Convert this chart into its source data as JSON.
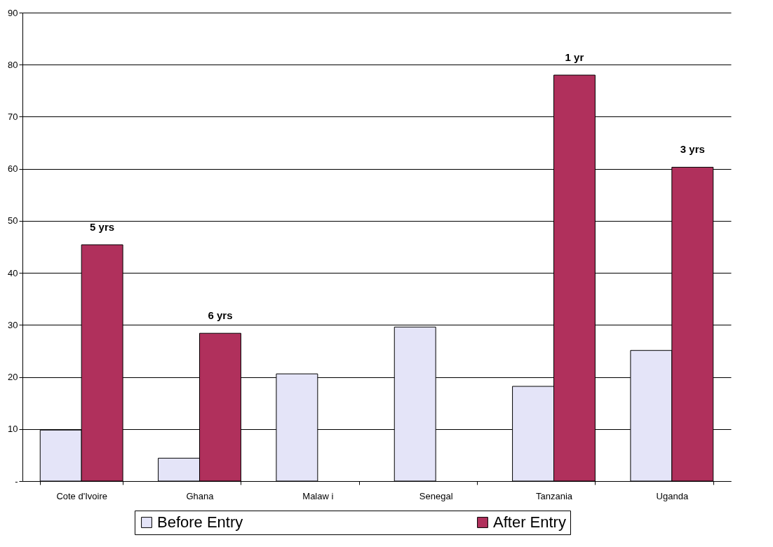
{
  "chart_data": {
    "type": "bar",
    "categories": [
      "Cote d'Ivoire",
      "Ghana",
      "Malaw i",
      "Senegal",
      "Tanzania",
      "Uganda"
    ],
    "series": [
      {
        "name": "Before Entry",
        "color": "#e4e4f8",
        "values": [
          9.8,
          4.4,
          20.6,
          29.6,
          18.2,
          25.1
        ]
      },
      {
        "name": "After Entry",
        "color": "#b0305c",
        "values": [
          45.4,
          28.4,
          null,
          null,
          78.0,
          60.3
        ]
      }
    ],
    "ylim": [
      0,
      90
    ],
    "yticks": [
      {
        "value": 0,
        "label": "-"
      },
      10,
      20,
      30,
      40,
      50,
      60,
      70,
      80,
      90
    ],
    "grid": "y",
    "legend": "bottom",
    "annotations": [
      {
        "text": "5 yrs",
        "x": "Cote d'Ivoire",
        "y": 45.4
      },
      {
        "text": "6 yrs",
        "x": "Ghana",
        "y": 28.4
      },
      {
        "text": "1 yr",
        "x": "Tanzania",
        "y": 78.0
      },
      {
        "text": "3  yrs",
        "x": "Uganda",
        "y": 60.3
      }
    ]
  }
}
